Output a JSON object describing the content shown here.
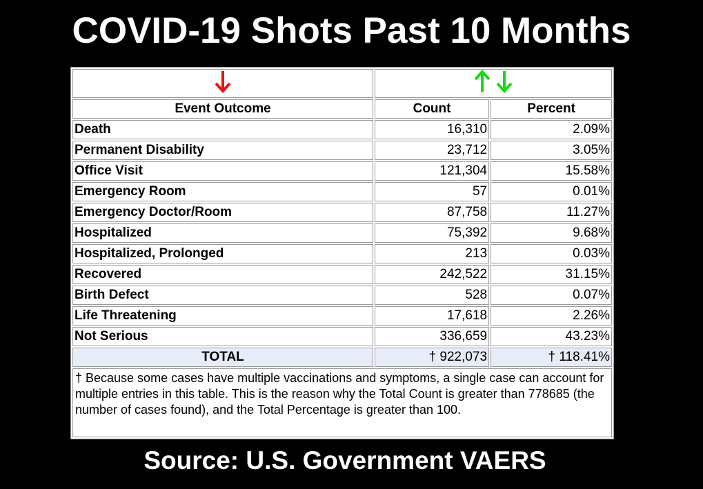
{
  "title": "COVID-19 Shots Past 10 Months",
  "table": {
    "columns": [
      "Event Outcome",
      "Count",
      "Percent"
    ],
    "rows": [
      [
        "Death",
        "16,310",
        "2.09%"
      ],
      [
        "Permanent Disability",
        "23,712",
        "3.05%"
      ],
      [
        "Office Visit",
        "121,304",
        "15.58%"
      ],
      [
        "Emergency Room",
        "57",
        "0.01%"
      ],
      [
        "Emergency Doctor/Room",
        "87,758",
        "11.27%"
      ],
      [
        "Hospitalized",
        "75,392",
        "9.68%"
      ],
      [
        "Hospitalized, Prolonged",
        "213",
        "0.03%"
      ],
      [
        "Recovered",
        "242,522",
        "31.15%"
      ],
      [
        "Birth Defect",
        "528",
        "0.07%"
      ],
      [
        "Life Threatening",
        "17,618",
        "2.26%"
      ],
      [
        "Not Serious",
        "336,659",
        "43.23%"
      ]
    ],
    "total": [
      "TOTAL",
      "† 922,073",
      "† 118.41%"
    ],
    "footnote": "† Because some cases have multiple vaccinations and symptoms, a single case can account for multiple entries in this table. This is the reason why the Total Count is greater than 778685 (the number of cases found), and the Total Percentage is greater than 100."
  },
  "source": "Source: U.S. Government VAERS"
}
